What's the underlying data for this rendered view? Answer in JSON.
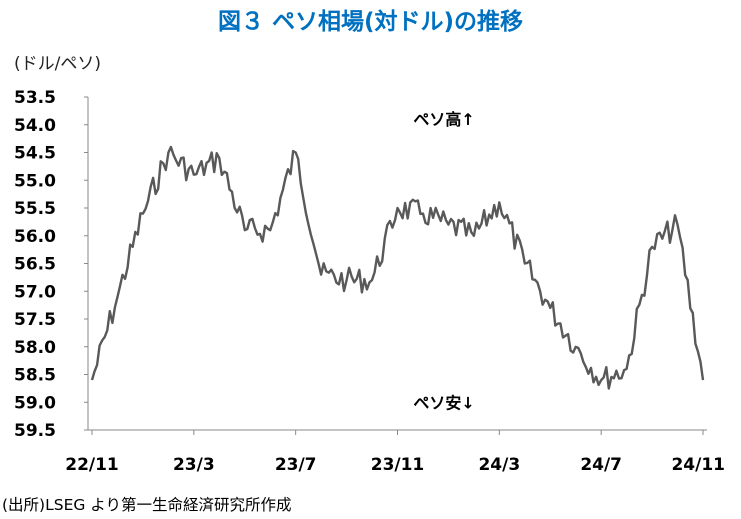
{
  "title": "図３ ペソ相場(対ドル)の推移",
  "source": "(出所)LSEG より第一生命経済研究所作成",
  "chart_data": {
    "type": "line",
    "title": "図３ ペソ相場(対ドル)の推移",
    "unit_label": "(ドル/ペソ)",
    "ylabel": "(ドル/ペソ)",
    "xlabel": "",
    "y_inverted": true,
    "ylim": [
      53.5,
      59.5
    ],
    "yticks": [
      "53.5",
      "54.0",
      "54.5",
      "55.0",
      "55.5",
      "56.0",
      "56.5",
      "57.0",
      "57.5",
      "58.0",
      "58.5",
      "59.0",
      "59.5"
    ],
    "xticks": [
      "22/11",
      "23/3",
      "23/7",
      "23/11",
      "24/3",
      "24/7",
      "24/11"
    ],
    "grid": false,
    "annotations": [
      {
        "text": "ペソ高↑",
        "x": "24/1",
        "y": 53.9
      },
      {
        "text": "ペソ安↓",
        "x": "24/1",
        "y": 59.0
      }
    ],
    "series": [
      {
        "x": [
          "22/11",
          "22/12",
          "23/1",
          "23/2",
          "23/3",
          "23/4",
          "23/5",
          "23/6",
          "23/7",
          "23/8",
          "23/9",
          "23/10",
          "23/11",
          "23/12",
          "24/1",
          "24/2",
          "24/3",
          "24/4",
          "24/5",
          "24/6",
          "24/7",
          "24/8",
          "24/9",
          "24/10",
          "24/11"
        ],
        "values": [
          58.6,
          57.1,
          55.6,
          54.5,
          54.9,
          54.6,
          55.9,
          55.9,
          54.5,
          56.7,
          56.8,
          56.8,
          55.5,
          55.6,
          55.8,
          56.0,
          55.4,
          56.5,
          57.3,
          58.0,
          58.6,
          58.4,
          56.2,
          55.8,
          58.6
        ],
        "color": "#595959"
      }
    ]
  }
}
